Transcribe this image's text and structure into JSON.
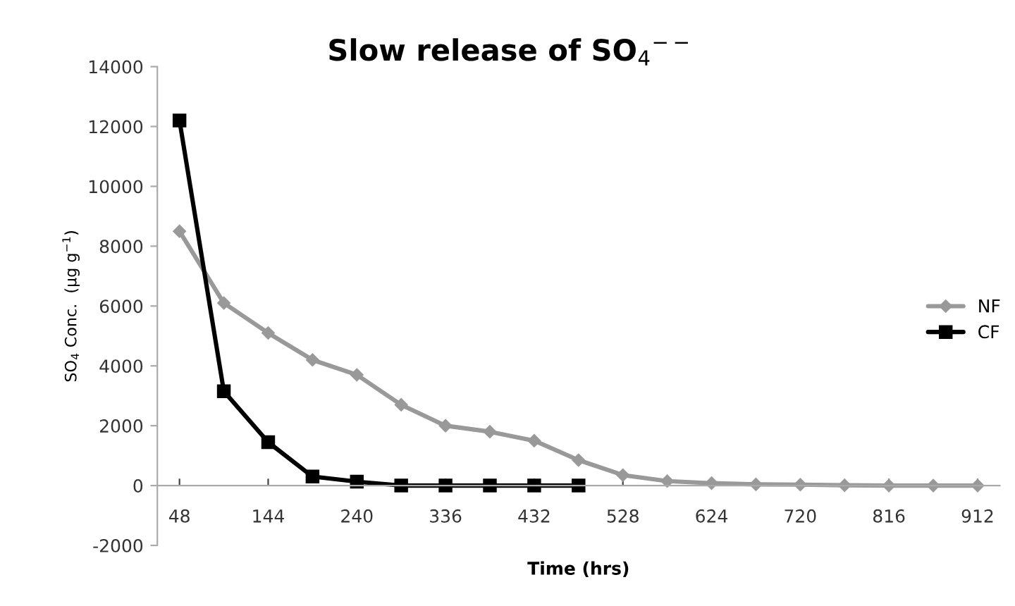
{
  "chart_data": {
    "type": "line",
    "title": "Slow release of SO$_{4}$$^{−−}$",
    "xlabel": "Time (hrs)",
    "ylabel": "SO$_{4}$ Conc.  (µg g$^{−1}$)",
    "x": [
      48,
      96,
      144,
      192,
      240,
      288,
      336,
      384,
      432,
      480,
      528,
      576,
      624,
      672,
      720,
      768,
      816,
      864,
      912
    ],
    "series": [
      {
        "name": "NF",
        "color": "#999999",
        "marker": "diamond",
        "values": [
          8500,
          6100,
          5100,
          4200,
          3700,
          2700,
          2000,
          1800,
          1500,
          850,
          350,
          150,
          80,
          40,
          30,
          10,
          0,
          0,
          0
        ]
      },
      {
        "name": "CF",
        "color": "#000000",
        "marker": "square",
        "values": [
          12200,
          3150,
          1450,
          300,
          130,
          0,
          0,
          0,
          0,
          0,
          null,
          null,
          null,
          null,
          null,
          null,
          null,
          null,
          null
        ]
      }
    ],
    "xlim": [
      24,
      936
    ],
    "xticks": [
      48,
      144,
      240,
      336,
      432,
      528,
      624,
      720,
      816,
      912
    ],
    "ylim": [
      -2000,
      14000
    ],
    "yticks": [
      -2000,
      0,
      2000,
      4000,
      6000,
      8000,
      10000,
      12000,
      14000
    ],
    "grid": false,
    "legend": "right",
    "line_style": "solid"
  }
}
